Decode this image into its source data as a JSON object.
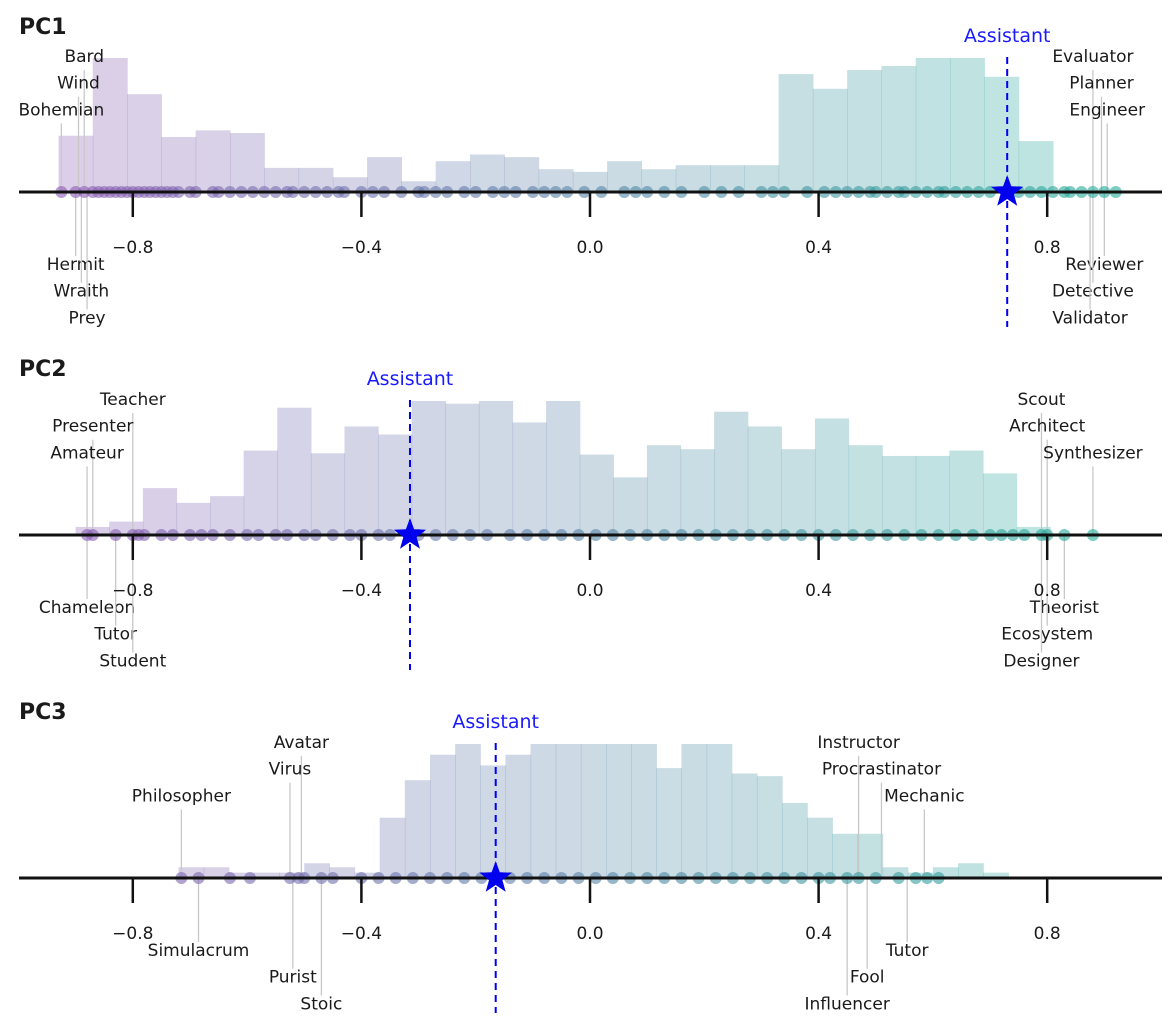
{
  "colors": {
    "start": "#8e5bb5",
    "end": "#1fae99",
    "assistant": "#0000ee",
    "axis": "#111111",
    "leader": "#c8c8c8"
  },
  "chart_data": [
    {
      "type": "histogram-strip",
      "title": "PC1",
      "xlim": [
        -1.0,
        1.0
      ],
      "ticks": [
        -0.8,
        -0.4,
        0.0,
        0.4,
        0.8
      ],
      "tick_labels": [
        "−0.8",
        "−0.4",
        "0.0",
        "0.4",
        "0.8"
      ],
      "assistant": {
        "label": "Assistant",
        "value": 0.73
      },
      "bins": {
        "start": -0.93,
        "width": 0.06,
        "heights": [
          0.42,
          1.0,
          0.73,
          0.41,
          0.46,
          0.44,
          0.18,
          0.18,
          0.11,
          0.26,
          0.08,
          0.23,
          0.28,
          0.26,
          0.17,
          0.15,
          0.23,
          0.17,
          0.2,
          0.2,
          0.2,
          0.88,
          0.77,
          0.91,
          0.94,
          1.0,
          1.0,
          0.86,
          0.38
        ]
      },
      "top_labels": [
        {
          "text": "Bard",
          "value": -0.885,
          "row": 0
        },
        {
          "text": "Wind",
          "value": -0.895,
          "row": 1
        },
        {
          "text": "Bohemian",
          "value": -0.925,
          "row": 2
        },
        {
          "text": "Evaluator",
          "value": 0.88,
          "row": 0
        },
        {
          "text": "Planner",
          "value": 0.895,
          "row": 1
        },
        {
          "text": "Engineer",
          "value": 0.905,
          "row": 2
        }
      ],
      "bottom_labels": [
        {
          "text": "Hermit",
          "value": -0.9,
          "row": 0
        },
        {
          "text": "Wraith",
          "value": -0.89,
          "row": 1
        },
        {
          "text": "Prey",
          "value": -0.88,
          "row": 2
        },
        {
          "text": "Reviewer",
          "value": 0.9,
          "row": 0
        },
        {
          "text": "Detective",
          "value": 0.88,
          "row": 1
        },
        {
          "text": "Validator",
          "value": 0.875,
          "row": 2
        }
      ],
      "points": [
        -0.925,
        -0.9,
        -0.885,
        -0.87,
        -0.86,
        -0.85,
        -0.84,
        -0.83,
        -0.82,
        -0.81,
        -0.8,
        -0.79,
        -0.78,
        -0.77,
        -0.76,
        -0.75,
        -0.74,
        -0.73,
        -0.72,
        -0.7,
        -0.69,
        -0.66,
        -0.65,
        -0.63,
        -0.61,
        -0.59,
        -0.57,
        -0.55,
        -0.53,
        -0.52,
        -0.5,
        -0.48,
        -0.46,
        -0.44,
        -0.43,
        -0.4,
        -0.38,
        -0.36,
        -0.33,
        -0.3,
        -0.29,
        -0.27,
        -0.25,
        -0.22,
        -0.2,
        -0.17,
        -0.15,
        -0.13,
        -0.1,
        -0.08,
        -0.06,
        -0.04,
        -0.01,
        0.02,
        0.06,
        0.08,
        0.1,
        0.13,
        0.16,
        0.2,
        0.23,
        0.26,
        0.3,
        0.32,
        0.34,
        0.38,
        0.41,
        0.43,
        0.45,
        0.47,
        0.49,
        0.5,
        0.52,
        0.54,
        0.55,
        0.57,
        0.59,
        0.61,
        0.62,
        0.64,
        0.66,
        0.68,
        0.7,
        0.75,
        0.77,
        0.79,
        0.81,
        0.83,
        0.84,
        0.86,
        0.88,
        0.9,
        0.92
      ]
    },
    {
      "type": "histogram-strip",
      "title": "PC2",
      "xlim": [
        -1.0,
        1.0
      ],
      "ticks": [
        -0.8,
        -0.4,
        0.0,
        0.4,
        0.8
      ],
      "tick_labels": [
        "−0.8",
        "−0.4",
        "0.0",
        "0.4",
        "0.8"
      ],
      "assistant": {
        "label": "Assistant",
        "value": -0.315
      },
      "bins": {
        "start": -0.9,
        "width": 0.0588,
        "heights": [
          0.06,
          0.1,
          0.35,
          0.24,
          0.29,
          0.63,
          0.95,
          0.61,
          0.81,
          0.75,
          1.0,
          0.98,
          1.0,
          0.84,
          1.0,
          0.6,
          0.43,
          0.67,
          0.64,
          0.92,
          0.81,
          0.64,
          0.87,
          0.67,
          0.59,
          0.59,
          0.63,
          0.46,
          0.06
        ]
      },
      "top_labels": [
        {
          "text": "Teacher",
          "value": -0.8,
          "row": 0
        },
        {
          "text": "Presenter",
          "value": -0.87,
          "row": 1
        },
        {
          "text": "Amateur",
          "value": -0.88,
          "row": 2
        },
        {
          "text": "Scout",
          "value": 0.79,
          "row": 0
        },
        {
          "text": "Architect",
          "value": 0.8,
          "row": 1
        },
        {
          "text": "Synthesizer",
          "value": 0.88,
          "row": 2
        }
      ],
      "bottom_labels": [
        {
          "text": "Chameleon",
          "value": -0.88,
          "row": 0
        },
        {
          "text": "Tutor",
          "value": -0.83,
          "row": 1
        },
        {
          "text": "Student",
          "value": -0.8,
          "row": 2
        },
        {
          "text": "Theorist",
          "value": 0.83,
          "row": 0
        },
        {
          "text": "Ecosystem",
          "value": 0.8,
          "row": 1
        },
        {
          "text": "Designer",
          "value": 0.79,
          "row": 2
        }
      ],
      "points": [
        -0.88,
        -0.87,
        -0.83,
        -0.8,
        -0.79,
        -0.78,
        -0.75,
        -0.73,
        -0.7,
        -0.68,
        -0.66,
        -0.63,
        -0.6,
        -0.58,
        -0.55,
        -0.53,
        -0.5,
        -0.48,
        -0.45,
        -0.42,
        -0.4,
        -0.37,
        -0.35,
        -0.3,
        -0.27,
        -0.24,
        -0.21,
        -0.18,
        -0.14,
        -0.11,
        -0.08,
        -0.05,
        -0.02,
        0.01,
        0.04,
        0.07,
        0.1,
        0.13,
        0.16,
        0.19,
        0.22,
        0.25,
        0.28,
        0.31,
        0.34,
        0.37,
        0.4,
        0.43,
        0.46,
        0.49,
        0.52,
        0.55,
        0.58,
        0.61,
        0.64,
        0.67,
        0.7,
        0.72,
        0.74,
        0.76,
        0.79,
        0.8,
        0.83,
        0.88
      ]
    },
    {
      "type": "histogram-strip",
      "title": "PC3",
      "xlim": [
        -1.0,
        1.0
      ],
      "ticks": [
        -0.8,
        -0.4,
        0.0,
        0.4,
        0.8
      ],
      "tick_labels": [
        "−0.8",
        "−0.4",
        "0.0",
        "0.4",
        "0.8"
      ],
      "assistant": {
        "label": "Assistant",
        "value": -0.165
      },
      "bins": {
        "start": -0.72,
        "width": 0.044,
        "heights": [
          0.08,
          0.08,
          0.04,
          0.04,
          0.04,
          0.11,
          0.08,
          0.04,
          0.45,
          0.73,
          0.92,
          1.0,
          0.84,
          0.92,
          1.0,
          1.0,
          1.0,
          1.0,
          1.0,
          0.82,
          1.0,
          1.0,
          0.78,
          0.76,
          0.56,
          0.45,
          0.33,
          0.33,
          0.08,
          0.04,
          0.08,
          0.11,
          0.04
        ]
      },
      "top_labels": [
        {
          "text": "Avatar",
          "value": -0.505,
          "row": 0
        },
        {
          "text": "Virus",
          "value": -0.525,
          "row": 1
        },
        {
          "text": "Philosopher",
          "value": -0.715,
          "row": 2
        },
        {
          "text": "Instructor",
          "value": 0.47,
          "row": 0
        },
        {
          "text": "Procrastinator",
          "value": 0.51,
          "row": 1
        },
        {
          "text": "Mechanic",
          "value": 0.585,
          "row": 2
        }
      ],
      "bottom_labels": [
        {
          "text": "Simulacrum",
          "value": -0.685,
          "row": 0
        },
        {
          "text": "Purist",
          "value": -0.52,
          "row": 1
        },
        {
          "text": "Stoic",
          "value": -0.47,
          "row": 2
        },
        {
          "text": "Tutor",
          "value": 0.555,
          "row": 0
        },
        {
          "text": "Fool",
          "value": 0.485,
          "row": 1
        },
        {
          "text": "Influencer",
          "value": 0.45,
          "row": 2
        }
      ],
      "points": [
        -0.715,
        -0.685,
        -0.63,
        -0.595,
        -0.525,
        -0.51,
        -0.5,
        -0.47,
        -0.45,
        -0.4,
        -0.37,
        -0.34,
        -0.31,
        -0.28,
        -0.25,
        -0.22,
        -0.19,
        -0.14,
        -0.11,
        -0.08,
        -0.05,
        -0.02,
        0.01,
        0.04,
        0.07,
        0.1,
        0.13,
        0.16,
        0.19,
        0.22,
        0.25,
        0.28,
        0.31,
        0.34,
        0.37,
        0.4,
        0.42,
        0.45,
        0.47,
        0.5,
        0.54,
        0.57,
        0.59,
        0.61
      ]
    }
  ]
}
